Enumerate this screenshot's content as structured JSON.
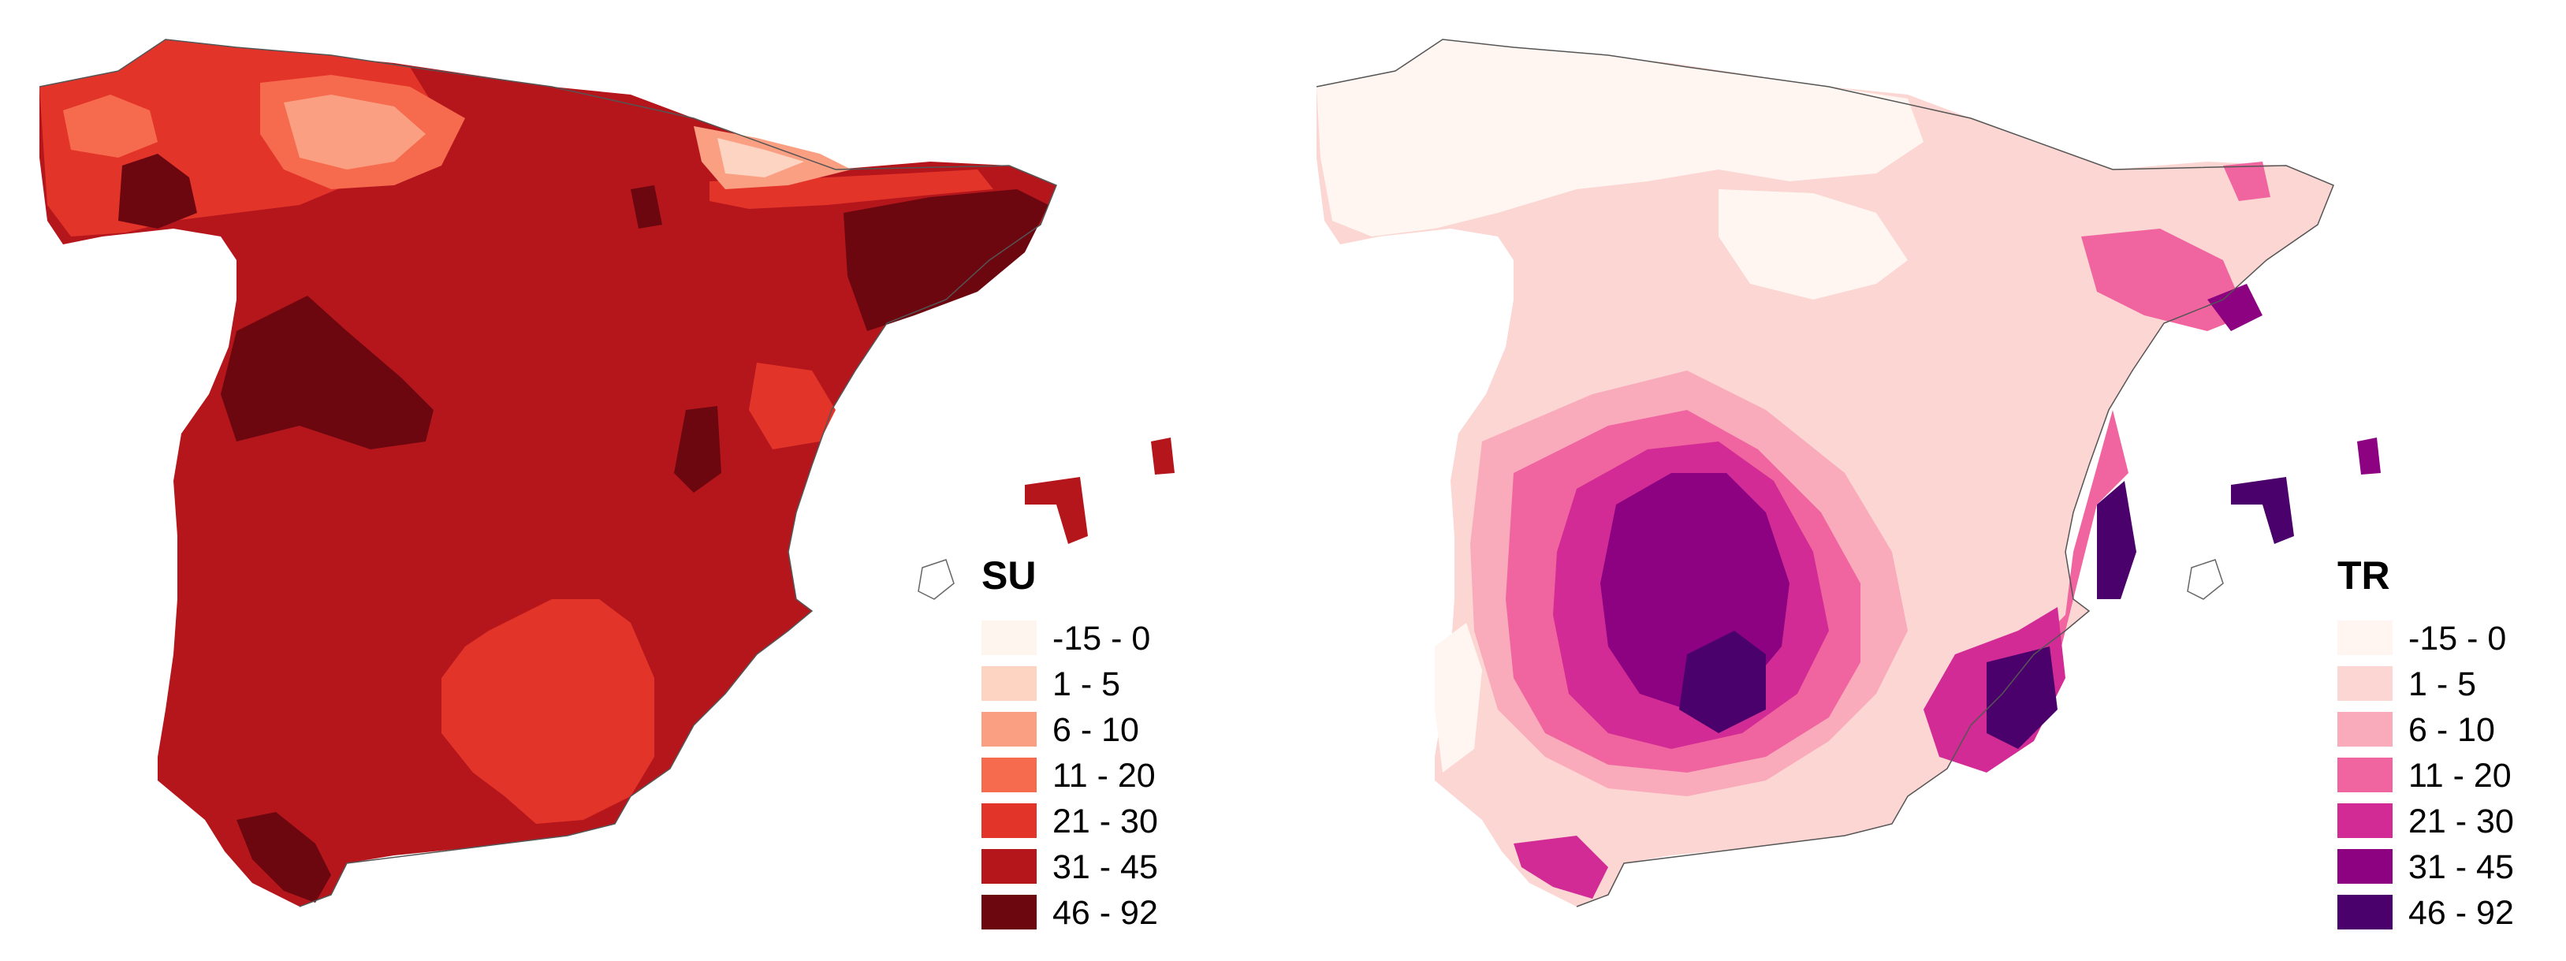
{
  "maps": [
    {
      "id": "su",
      "legend": {
        "title": "SU",
        "items": [
          {
            "label": "-15 - 0",
            "color": "#fff5ef"
          },
          {
            "label": "1 - 5",
            "color": "#fdd3c1"
          },
          {
            "label": "6 - 10",
            "color": "#fb9f82"
          },
          {
            "label": "11 - 20",
            "color": "#f66b4d"
          },
          {
            "label": "21 - 30",
            "color": "#e3342a"
          },
          {
            "label": "31 - 45",
            "color": "#b5161c"
          },
          {
            "label": "46 - 92",
            "color": "#6c0710"
          }
        ]
      }
    },
    {
      "id": "tr",
      "legend": {
        "title": "TR",
        "items": [
          {
            "label": "-15 - 0",
            "color": "#fff6f2"
          },
          {
            "label": "1 - 5",
            "color": "#fcd6d2"
          },
          {
            "label": "6 - 10",
            "color": "#f9aabb"
          },
          {
            "label": "11 - 20",
            "color": "#f0659f"
          },
          {
            "label": "21 - 30",
            "color": "#d22b95"
          },
          {
            "label": "31 - 45",
            "color": "#8c0281"
          },
          {
            "label": "46 - 92",
            "color": "#4b016c"
          }
        ]
      }
    }
  ]
}
